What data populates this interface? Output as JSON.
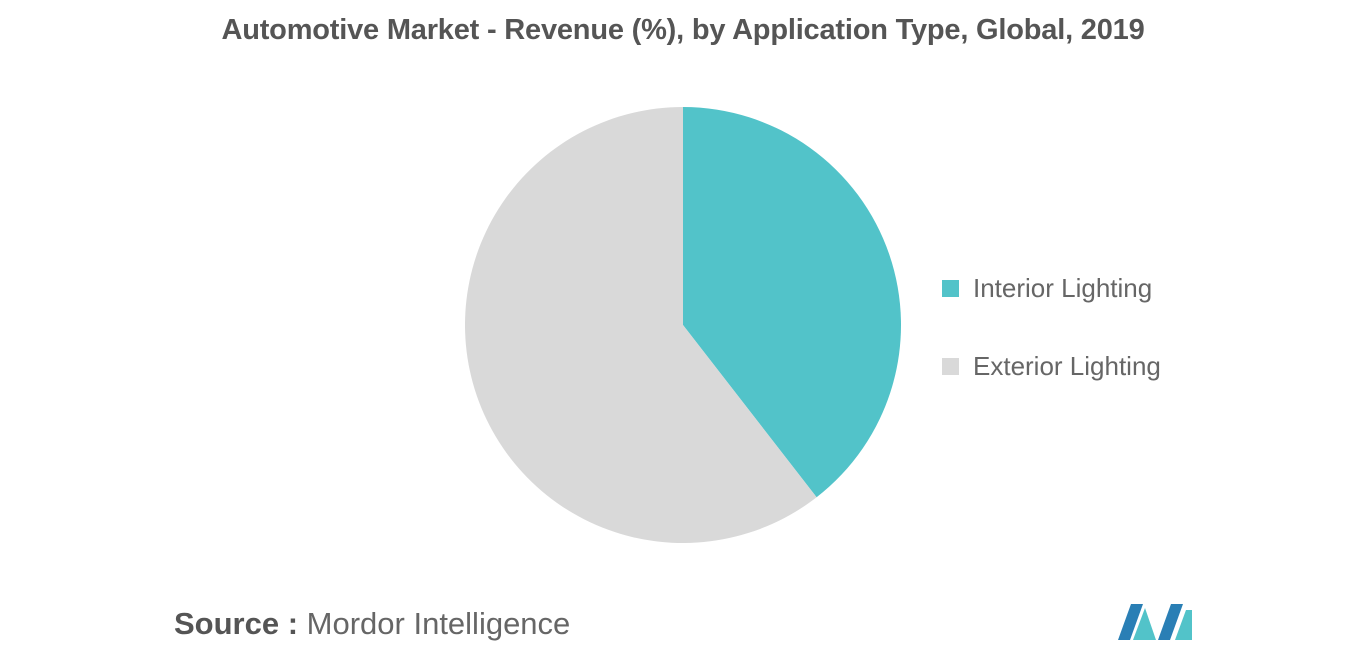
{
  "chart_data": {
    "type": "pie",
    "title": "Automotive Market - Revenue (%), by Application Type, Global, 2019",
    "start_angle_deg": 0,
    "direction": "clockwise",
    "slices": [
      {
        "label": "Interior Lighting",
        "value": 39.5,
        "color": "#52C3C9"
      },
      {
        "label": "Exterior Lighting",
        "value": 60.5,
        "color": "#D9D9D9"
      }
    ],
    "legend": {
      "placement": "right",
      "items": [
        {
          "label": "Interior Lighting",
          "color": "#52C3C9"
        },
        {
          "label": "Exterior Lighting",
          "color": "#D9D9D9"
        }
      ]
    }
  },
  "source": {
    "prefix": "Source :",
    "text": "Mordor Intelligence"
  },
  "logo": {
    "colors": [
      "#2A7FB5",
      "#52C3C9"
    ]
  }
}
